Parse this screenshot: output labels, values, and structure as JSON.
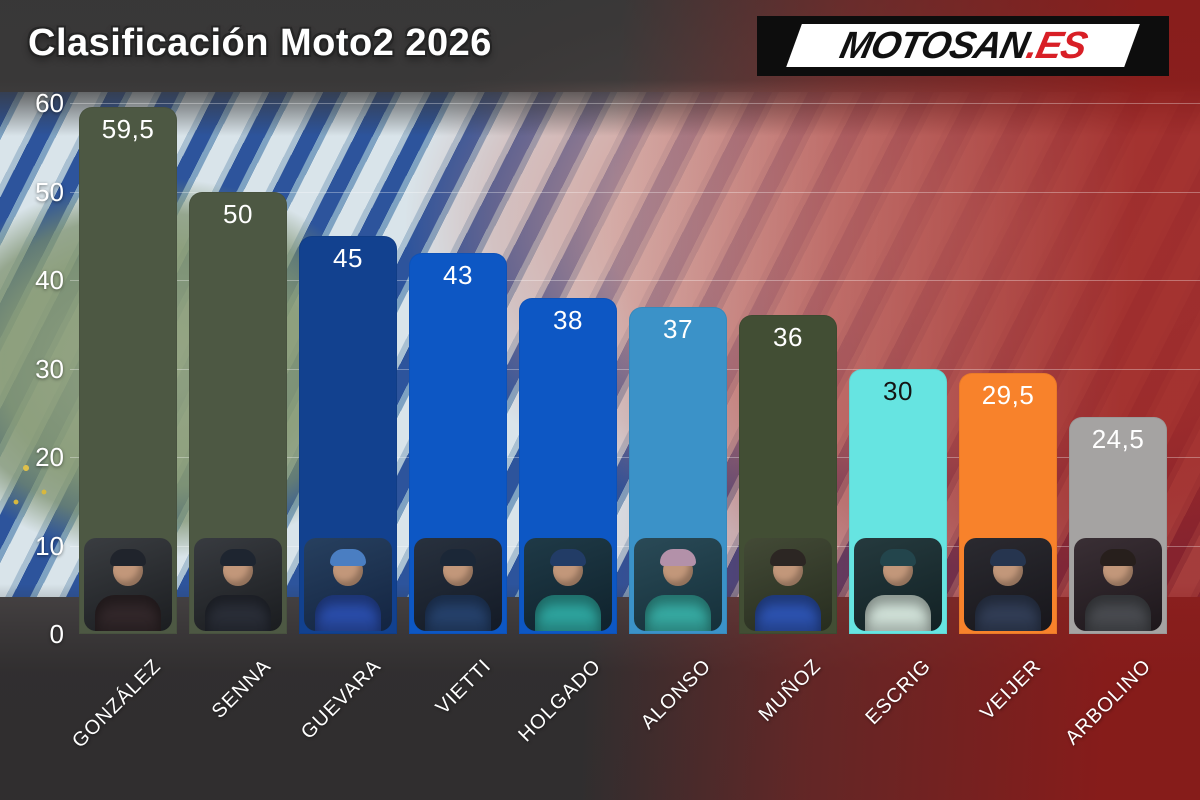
{
  "header": {
    "title": "Clasificación Moto2 2026"
  },
  "logo": {
    "black_part": "MOTOSAN",
    "red_part": ".ES",
    "red_color": "#d81f26"
  },
  "chart_data": {
    "type": "bar",
    "title": "Clasificación Moto2 2026",
    "categories": [
      "GONZÁLEZ",
      "SENNA",
      "GUEVARA",
      "VIETTI",
      "HOLGADO",
      "ALONSO",
      "MUÑOZ",
      "ESCRIG",
      "VEIJER",
      "ARBOLINO"
    ],
    "values": [
      59.5,
      50,
      45,
      43,
      38,
      37,
      36,
      30,
      29.5,
      24.5
    ],
    "value_labels": [
      "59,5",
      "50",
      "45",
      "43",
      "38",
      "37",
      "36",
      "30",
      "29,5",
      "24,5"
    ],
    "bar_colors": [
      "#4d5843",
      "#4d5843",
      "#12418f",
      "#0d57c4",
      "#0d57c4",
      "#3b92c8",
      "#424e34",
      "#66e4e1",
      "#f8822b",
      "#a5a3a2"
    ],
    "value_label_colors": [
      "#ffffff",
      "#ffffff",
      "#ffffff",
      "#ffffff",
      "#ffffff",
      "#ffffff",
      "#ffffff",
      "#141414",
      "#ffffff",
      "#ffffff"
    ],
    "xlabel": "",
    "ylabel": "",
    "ylim": [
      0,
      60
    ],
    "yticks": [
      0,
      10,
      20,
      30,
      40,
      50,
      60
    ],
    "grid": true,
    "legend": "none",
    "tick_color": "#ffffff",
    "gridline_color": "rgba(255,255,255,0.32)"
  },
  "riders": [
    {
      "name": "GONZÁLEZ",
      "avatar_bg1": "#3a3d41",
      "avatar_bg2": "#1b1d20",
      "cap": "#20242c",
      "suit": "#33282b"
    },
    {
      "name": "SENNA",
      "avatar_bg1": "#383b40",
      "avatar_bg2": "#1a1c1f",
      "cap": "#1e2530",
      "suit": "#2b2f39"
    },
    {
      "name": "GUEVARA",
      "avatar_bg1": "#27405f",
      "avatar_bg2": "#132441",
      "cap": "#4a7ec2",
      "suit": "#2b4fae"
    },
    {
      "name": "VIETTI",
      "avatar_bg1": "#28313e",
      "avatar_bg2": "#131a26",
      "cap": "#1b2737",
      "suit": "#27436e"
    },
    {
      "name": "HOLGADO",
      "avatar_bg1": "#1f3a47",
      "avatar_bg2": "#0f222c",
      "cap": "#223c66",
      "suit": "#2fa8a2"
    },
    {
      "name": "ALONSO",
      "avatar_bg1": "#2a4a57",
      "avatar_bg2": "#15303a",
      "cap": "#b391a9",
      "suit": "#38aea6"
    },
    {
      "name": "MUÑOZ",
      "avatar_bg1": "#434a36",
      "avatar_bg2": "#272d1f",
      "cap": "#2c2623",
      "suit": "#2e55b5"
    },
    {
      "name": "ESCRIG",
      "avatar_bg1": "#253a3e",
      "avatar_bg2": "#122124",
      "cap": "#23454c",
      "suit": "#d6e7de"
    },
    {
      "name": "VEIJER",
      "avatar_bg1": "#2b2a30",
      "avatar_bg2": "#17161b",
      "cap": "#26354f",
      "suit": "#333f58"
    },
    {
      "name": "ARBOLINO",
      "avatar_bg1": "#3a2f35",
      "avatar_bg2": "#1d171b",
      "cap": "#271f1c",
      "suit": "#4b4d52"
    }
  ]
}
